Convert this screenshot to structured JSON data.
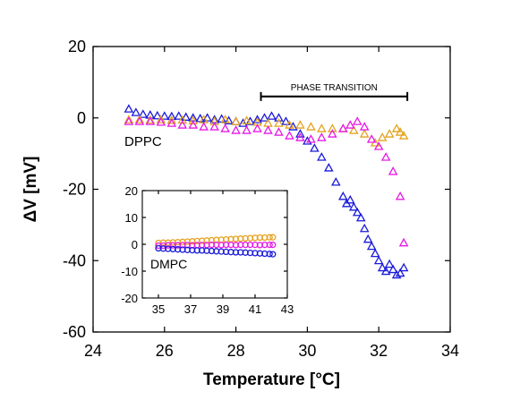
{
  "chart_data": [
    {
      "type": "scatter",
      "title": "",
      "xlabel": "Temperature  [°C]",
      "ylabel": "ΔV  [mV]",
      "xlim": [
        24,
        34
      ],
      "ylim": [
        -60,
        20
      ],
      "xticks": [
        24,
        26,
        28,
        30,
        32,
        34
      ],
      "yticks": [
        -60,
        -40,
        -20,
        0,
        20
      ],
      "grid": false,
      "annotations": {
        "curve_label": "DPPC",
        "phase_transition": {
          "label": "PHASE TRANSITION",
          "x_start": 28.7,
          "x_end": 32.8,
          "y": 6
        }
      },
      "series": [
        {
          "color": "#1a1adb",
          "marker": "triangle",
          "x": [
            25.0,
            25.2,
            25.4,
            25.6,
            25.8,
            26.0,
            26.2,
            26.4,
            26.6,
            26.8,
            27.0,
            27.2,
            27.4,
            27.6,
            27.8,
            28.0,
            28.2,
            28.4,
            28.6,
            28.8,
            29.0,
            29.2,
            29.4,
            29.6,
            29.8,
            30.0,
            30.2,
            30.4,
            30.6,
            30.8,
            31.0,
            31.1,
            31.2,
            31.3,
            31.4,
            31.5,
            31.6,
            31.7,
            31.8,
            31.9,
            32.0,
            32.1,
            32.2,
            32.3,
            32.4,
            32.5,
            32.6,
            32.7
          ],
          "y": [
            2.5,
            1.5,
            1.0,
            0.8,
            0.6,
            0.5,
            0.4,
            0.5,
            0.2,
            0.0,
            -0.2,
            0.0,
            -0.5,
            -0.3,
            -0.8,
            -1.0,
            -1.5,
            -1.0,
            -0.5,
            0.0,
            0.5,
            0.0,
            -1.0,
            -2.5,
            -4.5,
            -6.5,
            -8.5,
            -11.0,
            -14.0,
            -18.0,
            -22.0,
            -24.0,
            -23.0,
            -25.0,
            -26.5,
            -28.0,
            -31.0,
            -34.0,
            -36.0,
            -38.0,
            -40.0,
            -42.0,
            -43.0,
            -41.0,
            -42.5,
            -44.0,
            -43.5,
            -42.0
          ]
        },
        {
          "color": "#e6a21e",
          "marker": "triangle",
          "x": [
            25.0,
            25.3,
            25.6,
            25.9,
            26.2,
            26.5,
            26.8,
            27.1,
            27.4,
            27.7,
            28.0,
            28.3,
            28.6,
            28.9,
            29.2,
            29.5,
            29.8,
            30.1,
            30.4,
            30.7,
            31.0,
            31.3,
            31.6,
            31.9,
            32.1,
            32.3,
            32.5,
            32.6,
            32.7
          ],
          "y": [
            -0.5,
            -0.5,
            -0.6,
            -0.5,
            -0.7,
            -0.6,
            -0.8,
            -0.5,
            -1.0,
            -0.5,
            -1.0,
            -0.8,
            -1.2,
            -1.5,
            -1.5,
            -2.0,
            -2.0,
            -2.5,
            -3.0,
            -3.0,
            -3.0,
            -3.5,
            -4.5,
            -7.0,
            -5.5,
            -4.5,
            -3.0,
            -4.0,
            -5.0
          ]
        },
        {
          "color": "#e619e6",
          "marker": "triangle",
          "x": [
            25.0,
            25.3,
            25.6,
            25.9,
            26.2,
            26.5,
            26.8,
            27.1,
            27.4,
            27.7,
            28.0,
            28.3,
            28.6,
            28.9,
            29.2,
            29.5,
            29.8,
            30.1,
            30.4,
            30.7,
            31.0,
            31.2,
            31.4,
            31.6,
            31.8,
            32.0,
            32.2,
            32.4,
            32.6,
            32.7
          ],
          "y": [
            -1.0,
            -1.0,
            -1.0,
            -1.2,
            -1.5,
            -2.0,
            -2.0,
            -2.5,
            -2.5,
            -3.0,
            -3.5,
            -3.5,
            -3.0,
            -3.5,
            -4.0,
            -5.0,
            -5.5,
            -6.0,
            -5.5,
            -4.5,
            -3.0,
            -2.0,
            -1.0,
            -2.5,
            -6.0,
            -8.0,
            -11.0,
            -15.0,
            -22.0,
            -35.0
          ]
        }
      ]
    },
    {
      "type": "scatter",
      "title": "",
      "xlabel": "",
      "ylabel": "",
      "xlim": [
        34,
        43
      ],
      "ylim": [
        -20,
        20
      ],
      "xticks": [
        35,
        37,
        39,
        41,
        43
      ],
      "yticks": [
        -20,
        -10,
        0,
        10,
        20
      ],
      "grid": false,
      "annotations": {
        "curve_label": "DMPC"
      },
      "series": [
        {
          "color": "#e6a21e",
          "marker": "circle",
          "x": [
            35.0,
            35.3,
            35.6,
            35.9,
            36.2,
            36.5,
            36.8,
            37.1,
            37.4,
            37.7,
            38.0,
            38.3,
            38.6,
            38.9,
            39.2,
            39.5,
            39.8,
            40.1,
            40.4,
            40.7,
            41.0,
            41.3,
            41.6,
            41.9,
            42.1
          ],
          "y": [
            0.5,
            0.6,
            0.6,
            0.7,
            0.8,
            0.9,
            1.0,
            1.1,
            1.2,
            1.3,
            1.4,
            1.5,
            1.6,
            1.7,
            1.8,
            1.9,
            2.0,
            2.1,
            2.2,
            2.3,
            2.4,
            2.5,
            2.5,
            2.6,
            2.6
          ]
        },
        {
          "color": "#e619e6",
          "marker": "circle",
          "x": [
            35.0,
            35.3,
            35.6,
            35.9,
            36.2,
            36.5,
            36.8,
            37.1,
            37.4,
            37.7,
            38.0,
            38.3,
            38.6,
            38.9,
            39.2,
            39.5,
            39.8,
            40.1,
            40.4,
            40.7,
            41.0,
            41.3,
            41.6,
            41.9,
            42.1
          ],
          "y": [
            -0.5,
            -0.5,
            -0.4,
            -0.4,
            -0.4,
            -0.3,
            -0.3,
            -0.4,
            -0.3,
            -0.3,
            -0.3,
            -0.2,
            -0.2,
            -0.3,
            -0.2,
            -0.2,
            -0.3,
            -0.2,
            -0.2,
            -0.2,
            -0.2,
            -0.3,
            -0.2,
            -0.2,
            -0.2
          ]
        },
        {
          "color": "#1a1adb",
          "marker": "circle",
          "x": [
            35.0,
            35.3,
            35.6,
            35.9,
            36.2,
            36.5,
            36.8,
            37.1,
            37.4,
            37.7,
            38.0,
            38.3,
            38.6,
            38.9,
            39.2,
            39.5,
            39.8,
            40.1,
            40.4,
            40.7,
            41.0,
            41.3,
            41.6,
            41.9,
            42.1
          ],
          "y": [
            -1.5,
            -1.6,
            -1.7,
            -1.8,
            -1.9,
            -2.0,
            -2.1,
            -2.2,
            -2.3,
            -2.3,
            -2.4,
            -2.5,
            -2.6,
            -2.7,
            -2.8,
            -2.9,
            -3.0,
            -3.0,
            -3.1,
            -3.2,
            -3.3,
            -3.4,
            -3.5,
            -3.6,
            -3.7
          ]
        }
      ]
    }
  ]
}
